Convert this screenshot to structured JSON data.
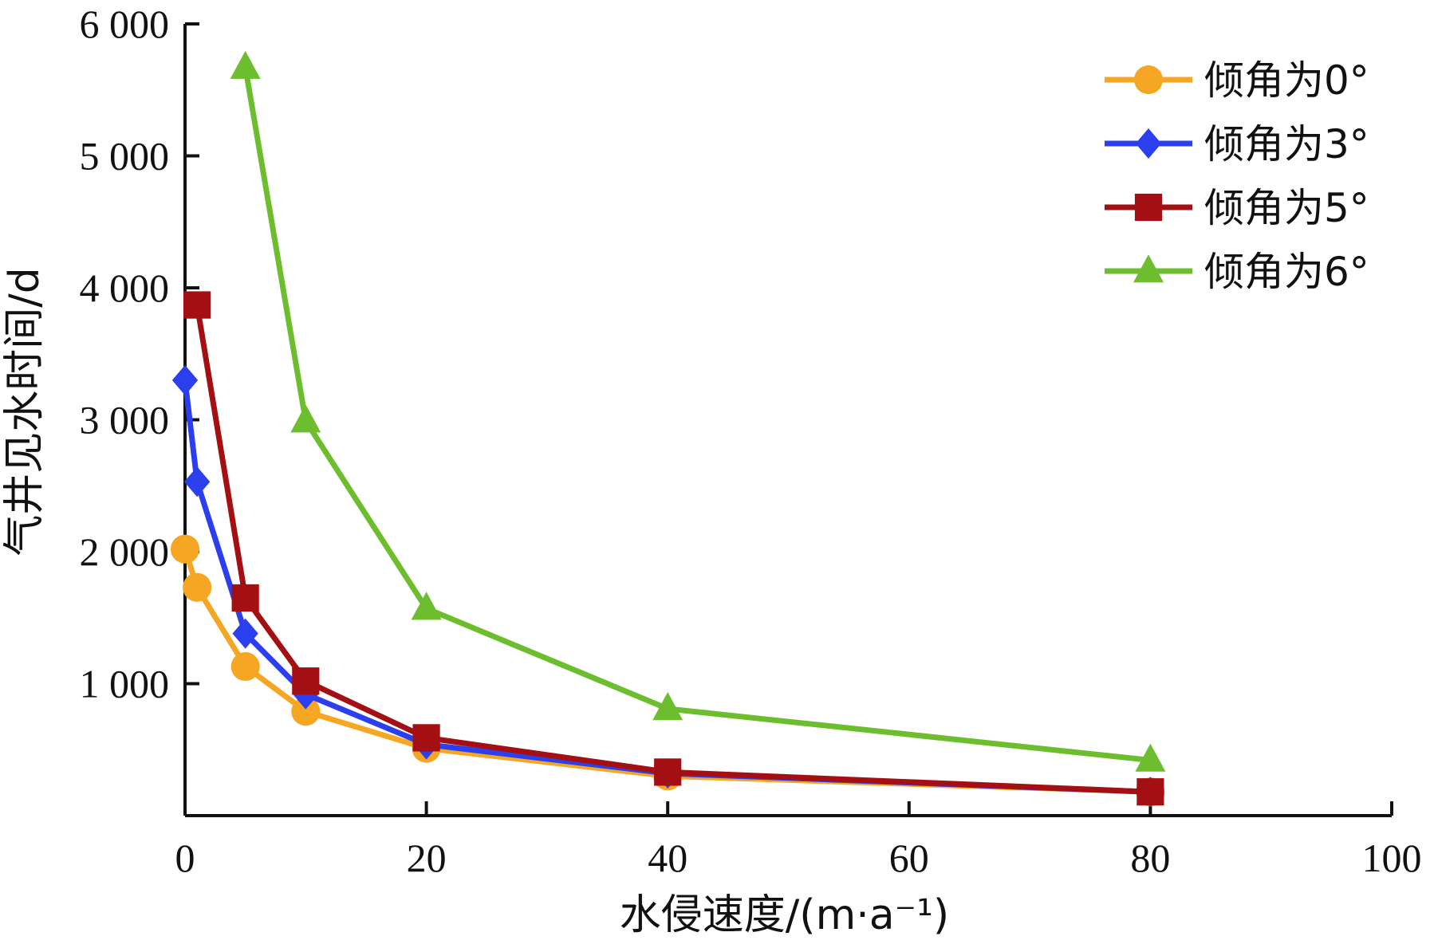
{
  "chart_data": {
    "type": "line",
    "xlabel": "水侵速度/(m·a⁻¹)",
    "ylabel": "气井见水时间/d",
    "xlim": [
      0,
      100
    ],
    "ylim": [
      0,
      6000
    ],
    "x_ticks": [
      0,
      20,
      40,
      60,
      80,
      100
    ],
    "x_tick_labels": [
      "0",
      "20",
      "40",
      "60",
      "80",
      "100"
    ],
    "y_ticks": [
      1000,
      2000,
      3000,
      4000,
      5000,
      6000
    ],
    "y_tick_labels": [
      "1 000",
      "2 000",
      "3 000",
      "4 000",
      "5 000",
      "6 000"
    ],
    "grid": false,
    "legend_position": "top-right",
    "series": [
      {
        "name": "倾角为0°",
        "color": "#F5A623",
        "marker": "circle",
        "x": [
          0,
          1,
          5,
          10,
          20,
          40,
          80
        ],
        "y": [
          2020,
          1730,
          1130,
          790,
          510,
          300,
          180
        ]
      },
      {
        "name": "倾角为3°",
        "color": "#2B3FEF",
        "marker": "diamond",
        "x": [
          0,
          1,
          5,
          10,
          20,
          40,
          80
        ],
        "y": [
          3300,
          2530,
          1380,
          920,
          540,
          320,
          180
        ]
      },
      {
        "name": "倾角为5°",
        "color": "#A30F12",
        "marker": "square",
        "x": [
          1,
          5,
          10,
          20,
          40,
          80
        ],
        "y": [
          3870,
          1650,
          1020,
          590,
          330,
          180
        ]
      },
      {
        "name": "倾角为6°",
        "color": "#6DBE2E",
        "marker": "triangle",
        "x": [
          5,
          10,
          20,
          40,
          80
        ],
        "y": [
          5670,
          2990,
          1570,
          810,
          420
        ]
      }
    ]
  }
}
